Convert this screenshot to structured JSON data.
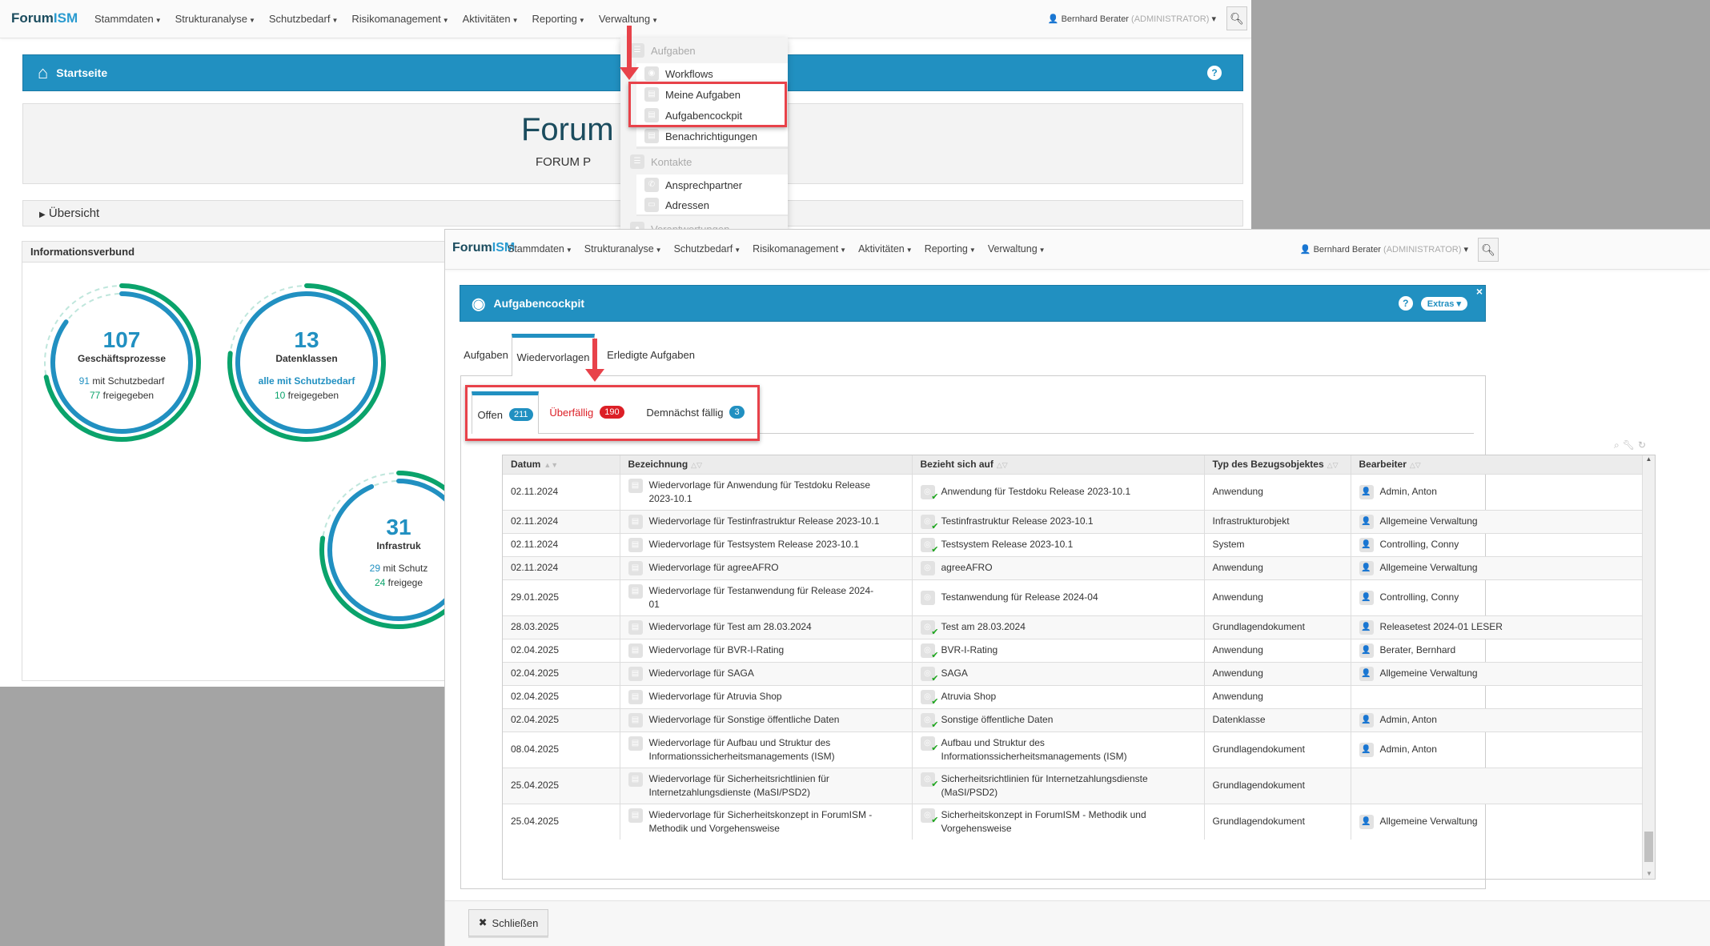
{
  "colors": {
    "brand": "#2190c1",
    "danger": "#dc1f26",
    "success": "#0aa36b",
    "highlight": "#e8424a",
    "background": "#a4a4a4"
  },
  "back": {
    "logo": {
      "a": "Forum",
      "b": "ISM"
    },
    "nav": [
      "Stammdaten",
      "Strukturanalyse",
      "Schutzbedarf",
      "Risikomanagement",
      "Aktivitäten",
      "Reporting",
      "Verwaltung"
    ],
    "user": {
      "name": "Bernhard Berater",
      "role": "(ADMINISTRATOR)"
    },
    "page_title": "Startseite",
    "help": "?",
    "banner": {
      "title": "Forum",
      "subtitle": "FORUM P"
    },
    "overview": "Übersicht",
    "panel_title": "Informationsverbund",
    "circles": [
      {
        "count": "107",
        "label": "Geschäftsprozesse",
        "schutz_value": "91",
        "schutz_text": "mit Schutzbedarf",
        "frei_value": "77",
        "frei_text": "freigegeben",
        "total": 107,
        "schutz": 91,
        "frei": 77
      },
      {
        "count": "13",
        "label": "Datenklassen",
        "schutz_value": "alle mit Schutzbedarf",
        "schutz_text": "",
        "frei_value": "10",
        "frei_text": "freigegeben",
        "total": 13,
        "schutz": 13,
        "frei": 10
      },
      {
        "count": "31",
        "label": "Infrastruk",
        "schutz_value": "29",
        "schutz_text": "mit Schutz",
        "frei_value": "24",
        "frei_text": "freigege",
        "total": 31,
        "schutz": 29,
        "frei": 24
      }
    ],
    "menu": {
      "group1": "Aufgaben",
      "items1": [
        "Workflows",
        "Meine Aufgaben",
        "Aufgabencockpit",
        "Benachrichtigungen"
      ],
      "group2": "Kontakte",
      "items2": [
        "Ansprechpartner",
        "Adressen"
      ],
      "group3": "Verantwortungen"
    }
  },
  "front": {
    "logo": {
      "a": "Forum",
      "b": "ISM"
    },
    "nav": [
      "Stammdaten",
      "Strukturanalyse",
      "Schutzbedarf",
      "Risikomanagement",
      "Aktivitäten",
      "Reporting",
      "Verwaltung"
    ],
    "user": {
      "name": "Bernhard Berater",
      "role": "(ADMINISTRATOR)"
    },
    "page_title": "Aufgabencockpit",
    "help": "?",
    "extras": "Extras",
    "close_x": "×",
    "tabs": [
      "Aufgaben",
      "Wiedervorlagen",
      "Erledigte Aufgaben"
    ],
    "subtabs": [
      {
        "label": "Offen",
        "count": "211"
      },
      {
        "label": "Überfällig",
        "count": "190"
      },
      {
        "label": "Demnächst fällig",
        "count": "3"
      }
    ],
    "columns": [
      "Datum",
      "Bezeichnung",
      "Bezieht sich auf",
      "Typ des Bezugsobjektes",
      "Bearbeiter"
    ],
    "rows": [
      [
        "02.11.2024",
        "Wiedervorlage für Anwendung für Testdoku Release 2023-10.1",
        "Anwendung für Testdoku Release 2023-10.1",
        true,
        "Anwendung",
        "Admin, Anton"
      ],
      [
        "02.11.2024",
        "Wiedervorlage für Testinfrastruktur Release 2023-10.1",
        "Testinfrastruktur Release 2023-10.1",
        true,
        "Infrastrukturobjekt",
        "Allgemeine Verwaltung"
      ],
      [
        "02.11.2024",
        "Wiedervorlage für Testsystem Release 2023-10.1",
        "Testsystem Release 2023-10.1",
        true,
        "System",
        "Controlling, Conny"
      ],
      [
        "02.11.2024",
        "Wiedervorlage für agreeAFRO",
        "agreeAFRO",
        false,
        "Anwendung",
        "Allgemeine Verwaltung"
      ],
      [
        "29.01.2025",
        "Wiedervorlage für Testanwendung für Release 2024-01",
        "Testanwendung für Release 2024-04",
        false,
        "Anwendung",
        "Controlling, Conny"
      ],
      [
        "28.03.2025",
        "Wiedervorlage für Test am 28.03.2024",
        "Test am 28.03.2024",
        true,
        "Grundlagendokument",
        "Releasetest 2024-01 LESER"
      ],
      [
        "02.04.2025",
        "Wiedervorlage für BVR-I-Rating",
        "BVR-I-Rating",
        true,
        "Anwendung",
        "Berater, Bernhard"
      ],
      [
        "02.04.2025",
        "Wiedervorlage für SAGA",
        "SAGA",
        true,
        "Anwendung",
        "Allgemeine Verwaltung"
      ],
      [
        "02.04.2025",
        "Wiedervorlage für Atruvia Shop",
        "Atruvia Shop",
        true,
        "Anwendung",
        ""
      ],
      [
        "02.04.2025",
        "Wiedervorlage für Sonstige öffentliche Daten",
        "Sonstige öffentliche Daten",
        true,
        "Datenklasse",
        "Admin, Anton"
      ],
      [
        "08.04.2025",
        "Wiedervorlage für Aufbau und Struktur des Informationssicherheitsmanagements (ISM)",
        "Aufbau und Struktur des Informationssicherheitsmanagements (ISM)",
        true,
        "Grundlagendokument",
        "Admin, Anton"
      ],
      [
        "25.04.2025",
        "Wiedervorlage für Sicherheitsrichtlinien für Internetzahlungsdienste (MaSI/PSD2)",
        "Sicherheitsrichtlinien für Internetzahlungsdienste (MaSI/PSD2)",
        true,
        "Grundlagendokument",
        ""
      ],
      [
        "25.04.2025",
        "Wiedervorlage für Sicherheitskonzept in ForumISM - Methodik und Vorgehensweise",
        "Sicherheitskonzept in ForumISM - Methodik und Vorgehensweise",
        true,
        "Grundlagendokument",
        "Allgemeine Verwaltung"
      ]
    ],
    "close_button": "Schließen"
  }
}
